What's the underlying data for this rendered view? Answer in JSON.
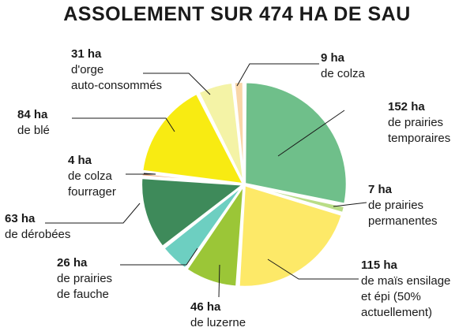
{
  "chart_data": {
    "type": "pie",
    "title": "ASSOLEMENT SUR 474 HA DE SAU",
    "unit": "ha",
    "slices": [
      {
        "value": 152,
        "value_label": "152 ha",
        "desc": [
          "de prairies",
          "temporaires"
        ],
        "color": "#6fbf8a"
      },
      {
        "value": 7,
        "value_label": "7 ha",
        "desc": [
          "de prairies",
          "permanentes"
        ],
        "color": "#b9dd86"
      },
      {
        "value": 115,
        "value_label": "115 ha",
        "desc": [
          "de maïs ensilage",
          "et épi (50%",
          "actuellement)"
        ],
        "color": "#fde968"
      },
      {
        "value": 46,
        "value_label": "46 ha",
        "desc": [
          "de luzerne"
        ],
        "color": "#9bc637"
      },
      {
        "value": 26,
        "value_label": "26 ha",
        "desc": [
          "de prairies",
          "de fauche"
        ],
        "color": "#6dcfc1"
      },
      {
        "value": 63,
        "value_label": "63 ha",
        "desc": [
          "de dérobées"
        ],
        "color": "#3e8a5a"
      },
      {
        "value": 4,
        "value_label": "4 ha",
        "desc": [
          "de colza",
          "fourrager"
        ],
        "color": "#e9a77e"
      },
      {
        "value": 84,
        "value_label": "84 ha",
        "desc": [
          "de blé"
        ],
        "color": "#f8eb12"
      },
      {
        "value": 31,
        "value_label": "31 ha",
        "desc": [
          "d'orge",
          "auto-consommés"
        ],
        "color": "#f4f3a6"
      },
      {
        "value": 9,
        "value_label": "9 ha",
        "desc": [
          "de colza"
        ],
        "color": "#f9d6a7"
      }
    ],
    "legend": "none"
  }
}
